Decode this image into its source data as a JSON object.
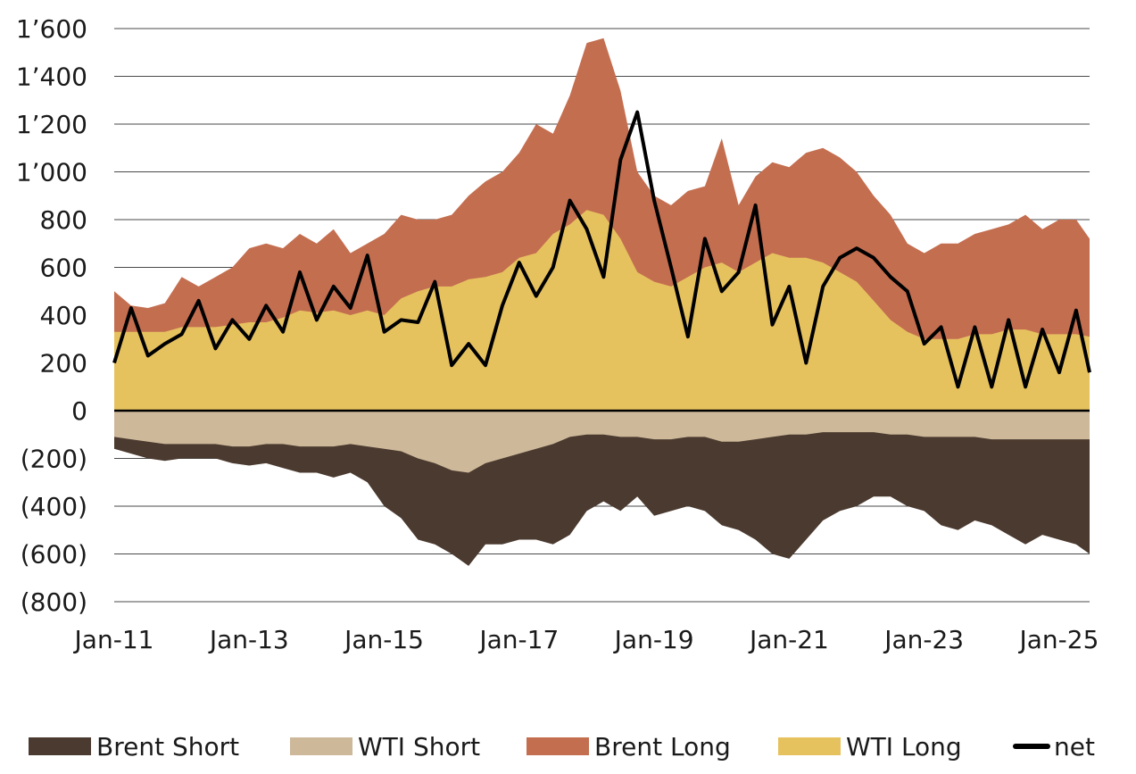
{
  "chart_data": {
    "type": "area",
    "x_tick_labels": [
      "Jan-11",
      "Jan-13",
      "Jan-15",
      "Jan-17",
      "Jan-19",
      "Jan-21",
      "Jan-23",
      "Jan-25"
    ],
    "x_tick_values": [
      2011,
      2013,
      2015,
      2017,
      2019,
      2021,
      2023,
      2025
    ],
    "x_range": [
      2011,
      2025.45
    ],
    "y_tick_labels": [
      "(800)",
      "(600)",
      "(400)",
      "(200)",
      "0",
      "200",
      "400",
      "600",
      "800",
      "1’000",
      "1’200",
      "1’400",
      "1’600"
    ],
    "y_tick_values": [
      -800,
      -600,
      -400,
      -200,
      0,
      200,
      400,
      600,
      800,
      1000,
      1200,
      1400,
      1600
    ],
    "ylim": [
      -800,
      1600
    ],
    "grid": true,
    "legend_position": "bottom",
    "x": [
      2011,
      2011.25,
      2011.5,
      2011.75,
      2012,
      2012.25,
      2012.5,
      2012.75,
      2013,
      2013.25,
      2013.5,
      2013.75,
      2014,
      2014.25,
      2014.5,
      2014.75,
      2015,
      2015.25,
      2015.5,
      2015.75,
      2016,
      2016.25,
      2016.5,
      2016.75,
      2017,
      2017.25,
      2017.5,
      2017.75,
      2018,
      2018.25,
      2018.5,
      2018.75,
      2019,
      2019.25,
      2019.5,
      2019.75,
      2020,
      2020.25,
      2020.5,
      2020.75,
      2021,
      2021.25,
      2021.5,
      2021.75,
      2022,
      2022.25,
      2022.5,
      2022.75,
      2023,
      2023.25,
      2023.5,
      2023.75,
      2024,
      2024.25,
      2024.5,
      2024.75,
      2025,
      2025.25,
      2025.45
    ],
    "series": [
      {
        "name": "Brent Short",
        "color": "#4b3a2f",
        "kind": "area-negative",
        "values": [
          -160,
          -180,
          -200,
          -210,
          -200,
          -200,
          -200,
          -220,
          -230,
          -220,
          -240,
          -260,
          -260,
          -280,
          -260,
          -300,
          -400,
          -450,
          -540,
          -560,
          -600,
          -650,
          -560,
          -560,
          -540,
          -540,
          -560,
          -520,
          -420,
          -380,
          -420,
          -360,
          -440,
          -420,
          -400,
          -420,
          -480,
          -500,
          -540,
          -600,
          -620,
          -540,
          -460,
          -420,
          -400,
          -360,
          -360,
          -400,
          -420,
          -480,
          -500,
          -460,
          -480,
          -520,
          -560,
          -520,
          -540,
          -560,
          -600
        ]
      },
      {
        "name": "WTI Short",
        "color": "#cdb89a",
        "kind": "area-negative",
        "values": [
          -110,
          -120,
          -130,
          -140,
          -140,
          -140,
          -140,
          -150,
          -150,
          -140,
          -140,
          -150,
          -150,
          -150,
          -140,
          -150,
          -160,
          -170,
          -200,
          -220,
          -250,
          -260,
          -220,
          -200,
          -180,
          -160,
          -140,
          -110,
          -100,
          -100,
          -110,
          -110,
          -120,
          -120,
          -110,
          -110,
          -130,
          -130,
          -120,
          -110,
          -100,
          -100,
          -90,
          -90,
          -90,
          -90,
          -100,
          -100,
          -110,
          -110,
          -110,
          -110,
          -120,
          -120,
          -120,
          -120,
          -120,
          -120,
          -120
        ]
      },
      {
        "name": "Brent Long",
        "color": "#c46e50",
        "kind": "area-positive",
        "values": [
          500,
          440,
          430,
          450,
          560,
          520,
          560,
          600,
          680,
          700,
          680,
          740,
          700,
          760,
          660,
          700,
          740,
          820,
          800,
          800,
          820,
          900,
          960,
          1000,
          1080,
          1200,
          1160,
          1320,
          1540,
          1560,
          1340,
          1000,
          900,
          860,
          920,
          940,
          1140,
          860,
          980,
          1040,
          1020,
          1080,
          1100,
          1060,
          1000,
          900,
          820,
          700,
          660,
          700,
          700,
          740,
          760,
          780,
          820,
          760,
          800,
          800,
          720
        ]
      },
      {
        "name": "WTI Long",
        "color": "#e6c25f",
        "kind": "area-positive",
        "values": [
          330,
          330,
          330,
          330,
          350,
          350,
          350,
          360,
          370,
          370,
          390,
          420,
          410,
          420,
          400,
          420,
          400,
          470,
          500,
          520,
          520,
          550,
          560,
          580,
          640,
          660,
          740,
          780,
          840,
          820,
          720,
          580,
          540,
          520,
          560,
          600,
          620,
          580,
          620,
          660,
          640,
          640,
          620,
          580,
          540,
          460,
          380,
          330,
          300,
          300,
          300,
          320,
          320,
          340,
          340,
          320,
          320,
          320,
          310
        ]
      },
      {
        "name": "net",
        "color": "#000000",
        "kind": "line",
        "values": [
          200,
          430,
          230,
          280,
          320,
          460,
          260,
          380,
          300,
          440,
          330,
          580,
          380,
          520,
          430,
          650,
          330,
          380,
          370,
          540,
          190,
          280,
          190,
          440,
          620,
          480,
          600,
          880,
          760,
          560,
          1050,
          1250,
          880,
          600,
          310,
          720,
          500,
          580,
          860,
          360,
          520,
          200,
          520,
          640,
          680,
          640,
          560,
          500,
          280,
          350,
          100,
          350,
          100,
          380,
          100,
          340,
          160,
          420,
          160
        ]
      }
    ]
  },
  "legend": {
    "items": [
      {
        "label": "Brent Short",
        "color": "#4b3a2f",
        "type": "area"
      },
      {
        "label": "WTI Short",
        "color": "#cdb89a",
        "type": "area"
      },
      {
        "label": "Brent Long",
        "color": "#c46e50",
        "type": "area"
      },
      {
        "label": "WTI Long",
        "color": "#e6c25f",
        "type": "area"
      },
      {
        "label": "net",
        "color": "#000000",
        "type": "line"
      }
    ]
  }
}
